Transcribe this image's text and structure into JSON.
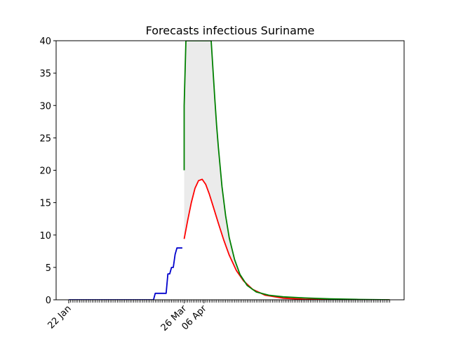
{
  "chart_data": {
    "type": "line",
    "title": "Forecasts infectious Suriname",
    "xlabel": "",
    "ylabel": "",
    "x_axis": "date",
    "x_tick_labels": [
      "22 Jan",
      "26 Mar",
      "06 Apr"
    ],
    "x_tick_dates": [
      "2020-01-22",
      "2020-03-26",
      "2020-04-06"
    ],
    "xlim": [
      "2020-01-15",
      "2020-07-26"
    ],
    "ylim": [
      0,
      40
    ],
    "y_ticks": [
      0,
      5,
      10,
      15,
      20,
      25,
      30,
      35,
      40
    ],
    "grid": false,
    "legend": "none",
    "shaded_band": {
      "color": "#ebebeb",
      "x_start": "2020-03-26",
      "x_end": "2020-07-18",
      "lower_series": "red",
      "upper_series": "green"
    },
    "series": [
      {
        "color": "#0000cc",
        "x": [
          "2020-01-22",
          "2020-02-05",
          "2020-02-19",
          "2020-03-04",
          "2020-03-09",
          "2020-03-10",
          "2020-03-13",
          "2020-03-14",
          "2020-03-15",
          "2020-03-16",
          "2020-03-17",
          "2020-03-18",
          "2020-03-19",
          "2020-03-20",
          "2020-03-21",
          "2020-03-22",
          "2020-03-23",
          "2020-03-24",
          "2020-03-25"
        ],
        "values": [
          0,
          0,
          0,
          0,
          0,
          1,
          1,
          1,
          1,
          1,
          4,
          4,
          5,
          5,
          7,
          8,
          8,
          8,
          8
        ]
      },
      {
        "color": "#ff0000",
        "x": [
          "2020-03-26",
          "2020-03-28",
          "2020-03-30",
          "2020-04-01",
          "2020-04-03",
          "2020-04-05",
          "2020-04-07",
          "2020-04-09",
          "2020-04-11",
          "2020-04-14",
          "2020-04-17",
          "2020-04-20",
          "2020-04-24",
          "2020-04-28",
          "2020-05-03",
          "2020-05-10",
          "2020-05-20",
          "2020-06-01",
          "2020-06-15",
          "2020-07-01",
          "2020-07-18"
        ],
        "values": [
          9.4,
          12.3,
          15,
          17.2,
          18.4,
          18.6,
          17.8,
          16.3,
          14.5,
          11.8,
          9.2,
          6.9,
          4.5,
          2.9,
          1.6,
          0.7,
          0.25,
          0.08,
          0.03,
          0.01,
          0
        ]
      },
      {
        "color": "#008000",
        "x": [
          "2020-03-26",
          "2020-03-26",
          "2020-03-27",
          "2020-04-01",
          "2020-04-05",
          "2020-04-10",
          "2020-04-11",
          "2020-04-12",
          "2020-04-13",
          "2020-04-14",
          "2020-04-16",
          "2020-04-18",
          "2020-04-20",
          "2020-04-23",
          "2020-04-26",
          "2020-04-30",
          "2020-05-05",
          "2020-05-12",
          "2020-05-20",
          "2020-06-01",
          "2020-06-15",
          "2020-07-01",
          "2020-07-18"
        ],
        "values": [
          20,
          30,
          40,
          40,
          40,
          40,
          35.5,
          31,
          27,
          23.5,
          17.5,
          13,
          9.6,
          6.2,
          3.9,
          2.2,
          1.2,
          0.7,
          0.45,
          0.28,
          0.15,
          0.05,
          0
        ]
      }
    ]
  }
}
